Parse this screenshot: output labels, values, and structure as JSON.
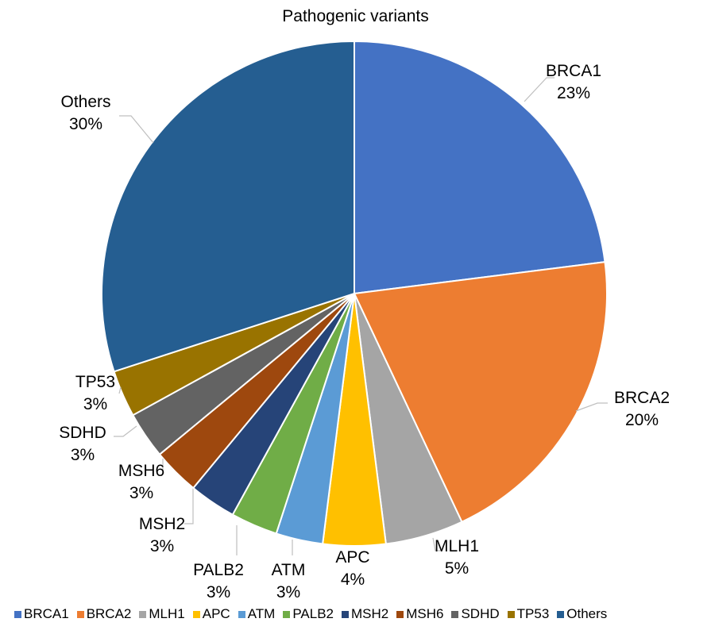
{
  "chart_data": {
    "type": "pie",
    "title": "Pathogenic variants",
    "legend_position": "bottom",
    "slices": [
      {
        "name": "BRCA1",
        "value": 23,
        "label": "23%",
        "color": "#4472C4"
      },
      {
        "name": "BRCA2",
        "value": 20,
        "label": "20%",
        "color": "#ED7D31"
      },
      {
        "name": "MLH1",
        "value": 5,
        "label": "5%",
        "color": "#A5A5A5"
      },
      {
        "name": "APC",
        "value": 4,
        "label": "4%",
        "color": "#FFC000"
      },
      {
        "name": "ATM",
        "value": 3,
        "label": "3%",
        "color": "#5B9BD5"
      },
      {
        "name": "PALB2",
        "value": 3,
        "label": "3%",
        "color": "#70AD47"
      },
      {
        "name": "MSH2",
        "value": 3,
        "label": "3%",
        "color": "#264478"
      },
      {
        "name": "MSH6",
        "value": 3,
        "label": "3%",
        "color": "#9E480E"
      },
      {
        "name": "SDHD",
        "value": 3,
        "label": "3%",
        "color": "#636363"
      },
      {
        "name": "TP53",
        "value": 3,
        "label": "3%",
        "color": "#997300"
      },
      {
        "name": "Others",
        "value": 30,
        "label": "30%",
        "color": "#255E91"
      }
    ]
  }
}
